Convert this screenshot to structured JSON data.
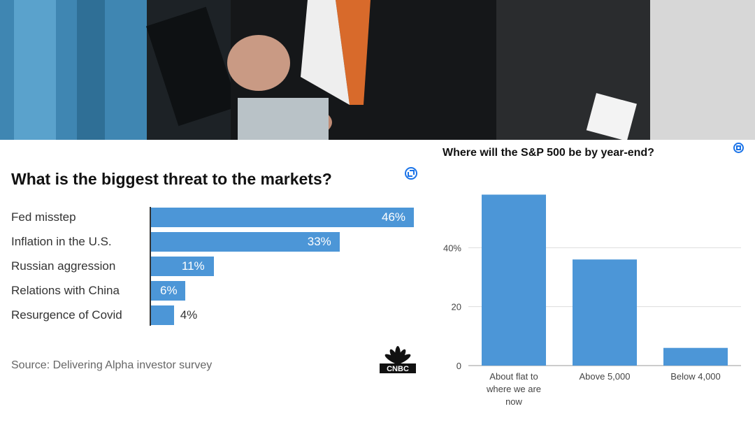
{
  "chart_data": [
    {
      "type": "bar",
      "orientation": "horizontal",
      "title": "What is the biggest threat to the markets?",
      "categories": [
        "Fed misstep",
        "Inflation in the U.S.",
        "Russian aggression",
        "Relations with China",
        "Resurgence of Covid"
      ],
      "values": [
        46,
        33,
        11,
        6,
        4
      ],
      "value_labels": [
        "46%",
        "33%",
        "11%",
        "6%",
        "4%"
      ],
      "xlim": [
        0,
        50
      ],
      "source": "Source: Delivering Alpha investor survey",
      "logo": "CNBC",
      "bar_color": "#4c96d7"
    },
    {
      "type": "bar",
      "title": "Where will the S&P 500 be by year-end?",
      "categories": [
        "About flat to where we are now",
        "Above 5,000",
        "Below 4,000"
      ],
      "category_lines": [
        [
          "About flat to",
          "where we are",
          "now"
        ],
        [
          "Above 5,000"
        ],
        [
          "Below 4,000"
        ]
      ],
      "values": [
        58,
        36,
        6
      ],
      "yticks": [
        0,
        20,
        40
      ],
      "ytick_labels": [
        "0",
        "20",
        "40%"
      ],
      "ylim": [
        0,
        60
      ],
      "grid": true,
      "bar_color": "#4c96d7"
    }
  ]
}
